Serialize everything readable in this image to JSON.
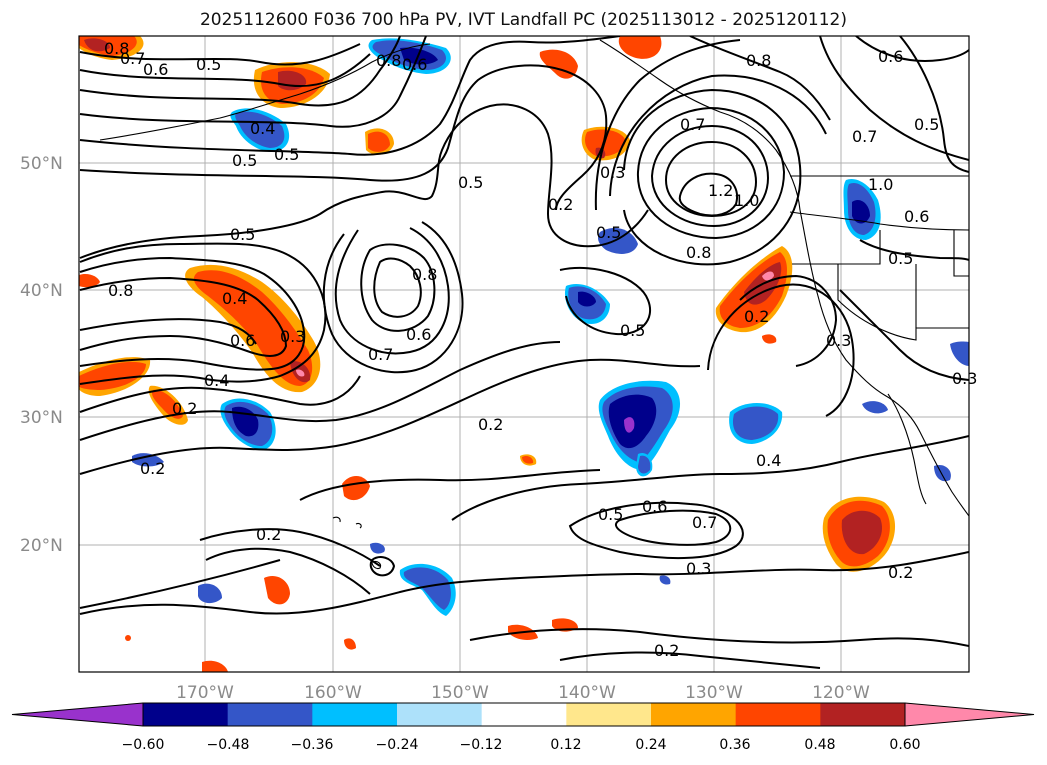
{
  "title": "2025112600 F036 700 hPa PV, IVT Landfall PC (2025113012 - 2025120112)",
  "map": {
    "lat_ticks": [
      "50°N",
      "40°N",
      "30°N",
      "20°N"
    ],
    "lon_ticks": [
      "170°W",
      "160°W",
      "150°W",
      "140°W",
      "130°W",
      "120°W"
    ]
  },
  "contour_labels": [
    "0.8",
    "0.7",
    "0.6",
    "0.5",
    "0.5",
    "0.8",
    "0.6",
    "0.4",
    "0.5",
    "0.5",
    "0.2",
    "0.3",
    "0.8",
    "0.6",
    "0.7",
    "0.5",
    "0.7",
    "1.0",
    "1.2",
    "0.8",
    "0.6",
    "0.8",
    "0.8",
    "0.4",
    "0.6",
    "0.3",
    "0.7",
    "1.0",
    "0.6",
    "0.5",
    "0.5",
    "0.4",
    "0.2",
    "0.2",
    "0.2",
    "0.2",
    "0.5",
    "0.6",
    "0.7",
    "0.4",
    "0.3",
    "0.3",
    "0.2",
    "0.2",
    "0.3",
    "0.2",
    "0.5",
    "0.5"
  ],
  "colorbar": {
    "ticks": [
      "−0.60",
      "−0.48",
      "−0.36",
      "−0.24",
      "−0.12",
      "0.12",
      "0.24",
      "0.36",
      "0.48",
      "0.60"
    ],
    "colors": [
      "#9932CC",
      "#00008B",
      "#3456C8",
      "#00BFFF",
      "#ADE1FA",
      "#FFFFFF",
      "#FFE78C",
      "#FFA500",
      "#FF4500",
      "#B22222",
      "#FF88AA",
      "#FF88AA"
    ]
  }
}
